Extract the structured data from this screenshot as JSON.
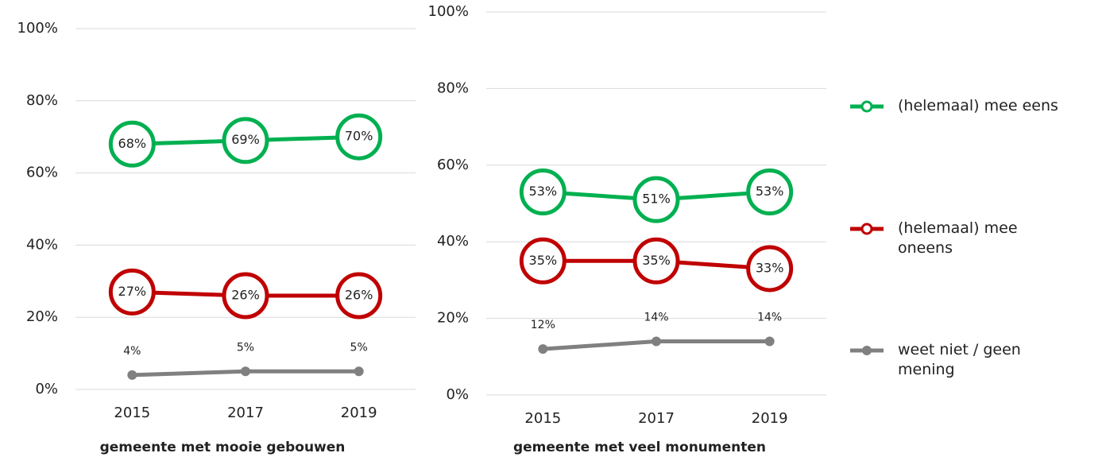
{
  "chart_data": [
    {
      "type": "line",
      "xlabel": "gemeente met mooie gebouwen",
      "categories": [
        "2015",
        "2017",
        "2019"
      ],
      "ylim": [
        0,
        100
      ],
      "yticks": [
        {
          "value": 0,
          "label": "0%"
        },
        {
          "value": 20,
          "label": "20%"
        },
        {
          "value": 40,
          "label": "40%"
        },
        {
          "value": 60,
          "label": "60%"
        },
        {
          "value": 80,
          "label": "80%"
        },
        {
          "value": 100,
          "label": "100%"
        }
      ],
      "grid": true,
      "series": [
        {
          "name": "(helemaal) mee eens",
          "color": "#00b050",
          "values": [
            68,
            69,
            70
          ],
          "value_labels": [
            "68%",
            "69%",
            "70%"
          ]
        },
        {
          "name": "(helemaal) mee oneens",
          "color": "#c00000",
          "values": [
            27,
            26,
            26
          ],
          "value_labels": [
            "27%",
            "26%",
            "26%"
          ]
        },
        {
          "name": "weet niet / geen mening",
          "color": "#808080",
          "values": [
            4,
            5,
            5
          ],
          "value_labels": [
            "4%",
            "5%",
            "5%"
          ]
        }
      ]
    },
    {
      "type": "line",
      "xlabel": "gemeente met veel monumenten",
      "categories": [
        "2015",
        "2017",
        "2019"
      ],
      "ylim": [
        0,
        100
      ],
      "yticks": [
        {
          "value": 0,
          "label": "0%"
        },
        {
          "value": 20,
          "label": "20%"
        },
        {
          "value": 40,
          "label": "40%"
        },
        {
          "value": 60,
          "label": "60%"
        },
        {
          "value": 80,
          "label": "80%"
        },
        {
          "value": 100,
          "label": "100%"
        }
      ],
      "grid": true,
      "series": [
        {
          "name": "(helemaal) mee eens",
          "color": "#00b050",
          "values": [
            53,
            51,
            53
          ],
          "value_labels": [
            "53%",
            "51%",
            "53%"
          ]
        },
        {
          "name": "(helemaal) mee oneens",
          "color": "#c00000",
          "values": [
            35,
            35,
            33
          ],
          "value_labels": [
            "35%",
            "35%",
            "33%"
          ]
        },
        {
          "name": "weet niet / geen mening",
          "color": "#808080",
          "values": [
            12,
            14,
            14
          ],
          "value_labels": [
            "12%",
            "14%",
            "14%"
          ]
        }
      ]
    }
  ]
}
